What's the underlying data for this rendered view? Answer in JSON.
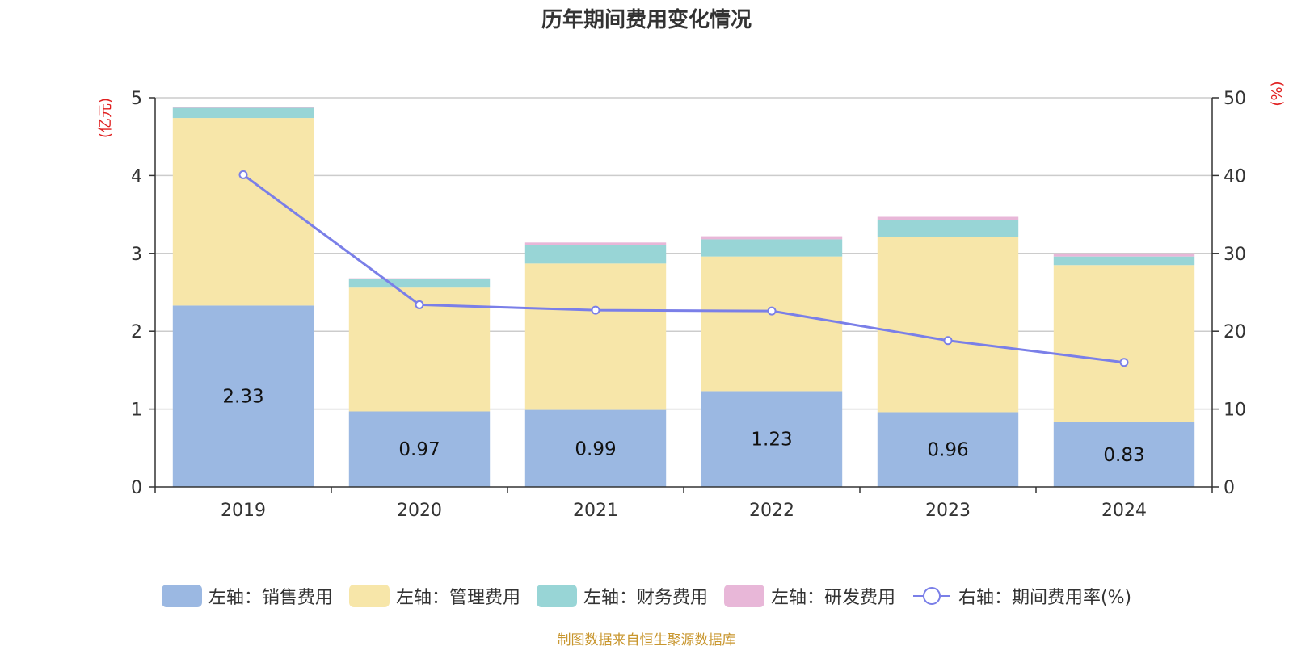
{
  "chart_data": {
    "type": "bar",
    "title": "历年期间费用变化情况",
    "categories": [
      "2019",
      "2020",
      "2021",
      "2022",
      "2023",
      "2024"
    ],
    "y_left": {
      "unit_label": "(亿元)",
      "min": 0,
      "max": 5,
      "ticks": [
        "0",
        "1",
        "2",
        "3",
        "4",
        "5"
      ]
    },
    "y_right": {
      "unit_label": "(%)",
      "min": 0,
      "max": 50,
      "ticks": [
        "0",
        "10",
        "20",
        "30",
        "40",
        "50"
      ]
    },
    "grid": true,
    "legend_position": "bottom",
    "series": [
      {
        "name": "左轴：销售费用",
        "kind": "bar",
        "axis": "left",
        "color": "#9bb8e2",
        "values": [
          2.33,
          0.97,
          0.99,
          1.23,
          0.96,
          0.83
        ],
        "labels": [
          "2.33",
          "0.97",
          "0.99",
          "1.23",
          "0.96",
          "0.83"
        ]
      },
      {
        "name": "左轴：管理费用",
        "kind": "bar",
        "axis": "left",
        "color": "#f7e6a9",
        "values": [
          2.41,
          1.59,
          1.88,
          1.73,
          2.25,
          2.02
        ]
      },
      {
        "name": "左轴：财务费用",
        "kind": "bar",
        "axis": "left",
        "color": "#98d5d6",
        "values": [
          0.13,
          0.11,
          0.24,
          0.22,
          0.22,
          0.11
        ]
      },
      {
        "name": "左轴：研发费用",
        "kind": "bar",
        "axis": "left",
        "color": "#e8b7d8",
        "values": [
          0.01,
          0.01,
          0.03,
          0.04,
          0.04,
          0.04
        ]
      },
      {
        "name": "右轴：期间费用率(%)",
        "kind": "line",
        "axis": "right",
        "color": "#7a7fe8",
        "values": [
          40.1,
          23.4,
          22.7,
          22.6,
          18.8,
          16.0
        ]
      }
    ],
    "source": "制图数据来自恒生聚源数据库"
  }
}
